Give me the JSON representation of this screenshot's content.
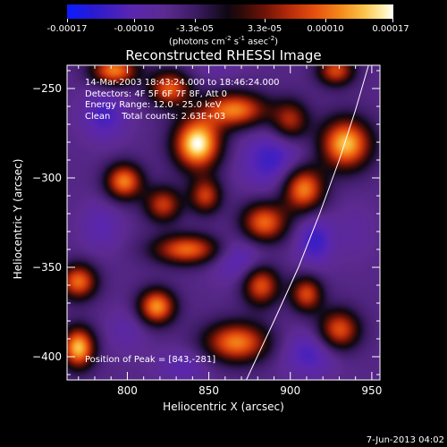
{
  "chart_data": {
    "type": "heatmap",
    "title": "Reconstructed RHESSI Image",
    "xlabel": "Heliocentric X (arcsec)",
    "ylabel": "Heliocentric Y (arcsec)",
    "xlim": [
      763,
      955
    ],
    "ylim": [
      -413,
      -237
    ],
    "xticks": [
      800,
      850,
      900,
      950
    ],
    "yticks": [
      -250,
      -300,
      -350,
      -400
    ],
    "colorscale": {
      "min": -0.00017,
      "max": 0.00017,
      "ticks": [
        "-0.00017",
        "-0.00010",
        "-3.3e-05",
        "3.3e-05",
        "0.00010",
        "0.00017"
      ],
      "units": "(photons cm-2 s-1 asec-2)"
    },
    "annotations": [
      "14-Mar-2003 18:43:24.000 to 18:46:24.000",
      "Detectors: 4F 5F 6F 7F 8F, Att 0",
      "Energy Range: 12.0 - 25.0 keV",
      "Clean    Total counts: 2.63E+03"
    ],
    "peak_text": "Position of Peak = [843,-281]",
    "peak": [
      843,
      -281
    ],
    "limb_curve": [
      [
        873,
        -413
      ],
      [
        890,
        -380
      ],
      [
        905,
        -350
      ],
      [
        918,
        -320
      ],
      [
        930,
        -290
      ],
      [
        940,
        -262
      ],
      [
        948,
        -237
      ]
    ],
    "sources": [
      {
        "x": 843,
        "y": -281,
        "value": 0.00017,
        "sx": 10,
        "sy": 10
      },
      {
        "x": 934,
        "y": -281,
        "value": 0.00014,
        "sx": 11,
        "sy": 10
      },
      {
        "x": 866,
        "y": -262,
        "value": 0.00011,
        "sx": 14,
        "sy": 7
      },
      {
        "x": 798,
        "y": -302,
        "value": 0.00011,
        "sx": 8,
        "sy": 7
      },
      {
        "x": 908,
        "y": -306,
        "value": 0.00012,
        "sx": 9,
        "sy": 9
      },
      {
        "x": 792,
        "y": -240,
        "value": 0.00011,
        "sx": 10,
        "sy": 6
      },
      {
        "x": 826,
        "y": -250,
        "value": 9e-05,
        "sx": 9,
        "sy": 7
      },
      {
        "x": 884,
        "y": -325,
        "value": 0.0001,
        "sx": 10,
        "sy": 8
      },
      {
        "x": 837,
        "y": -340,
        "value": 0.0001,
        "sx": 15,
        "sy": 6
      },
      {
        "x": 882,
        "y": -360,
        "value": 9e-05,
        "sx": 8,
        "sy": 8
      },
      {
        "x": 818,
        "y": -372,
        "value": 0.00012,
        "sx": 8,
        "sy": 7
      },
      {
        "x": 770,
        "y": -358,
        "value": 0.0001,
        "sx": 8,
        "sy": 7
      },
      {
        "x": 770,
        "y": -395,
        "value": 0.00014,
        "sx": 7,
        "sy": 8
      },
      {
        "x": 867,
        "y": -392,
        "value": 0.00011,
        "sx": 14,
        "sy": 8
      },
      {
        "x": 910,
        "y": -365,
        "value": 8e-05,
        "sx": 7,
        "sy": 7
      },
      {
        "x": 930,
        "y": -385,
        "value": 9e-05,
        "sx": 9,
        "sy": 8
      },
      {
        "x": 928,
        "y": -240,
        "value": 8e-05,
        "sx": 8,
        "sy": 6
      },
      {
        "x": 822,
        "y": -315,
        "value": 7e-05,
        "sx": 8,
        "sy": 7
      },
      {
        "x": 848,
        "y": -310,
        "value": 7e-05,
        "sx": 7,
        "sy": 7
      },
      {
        "x": 900,
        "y": -268,
        "value": 6e-05,
        "sx": 8,
        "sy": 8
      },
      {
        "x": 786,
        "y": -265,
        "value": -0.00012,
        "sx": 10,
        "sy": 10
      },
      {
        "x": 784,
        "y": -327,
        "value": -0.0001,
        "sx": 9,
        "sy": 10
      },
      {
        "x": 890,
        "y": -290,
        "value": -0.00013,
        "sx": 14,
        "sy": 12
      },
      {
        "x": 868,
        "y": -345,
        "value": -0.00012,
        "sx": 12,
        "sy": 9
      },
      {
        "x": 915,
        "y": -335,
        "value": -0.00013,
        "sx": 8,
        "sy": 10
      },
      {
        "x": 912,
        "y": -398,
        "value": -0.00012,
        "sx": 12,
        "sy": 9
      },
      {
        "x": 835,
        "y": -405,
        "value": -0.0001,
        "sx": 12,
        "sy": 7
      },
      {
        "x": 800,
        "y": -385,
        "value": -9e-05,
        "sx": 9,
        "sy": 9
      },
      {
        "x": 940,
        "y": -330,
        "value": -8e-05,
        "sx": 9,
        "sy": 12
      },
      {
        "x": 855,
        "y": -237,
        "value": -8e-05,
        "sx": 12,
        "sy": 6
      }
    ]
  },
  "colorbar": {
    "tick_labels": [
      "-0.00017",
      "-0.00010",
      "-3.3e-05",
      "3.3e-05",
      "0.00010",
      "0.00017"
    ],
    "units_text": "(photons cm",
    "units_sup1": "-2",
    "units_mid": " s",
    "units_sup2": "-1",
    "units_mid2": " asec",
    "units_sup3": "-2",
    "units_end": ")"
  },
  "timestamp": "7-Jun-2013 04:02",
  "colors": {
    "background": "#000000",
    "limb": "#ffffff",
    "text": "#ffffff"
  }
}
